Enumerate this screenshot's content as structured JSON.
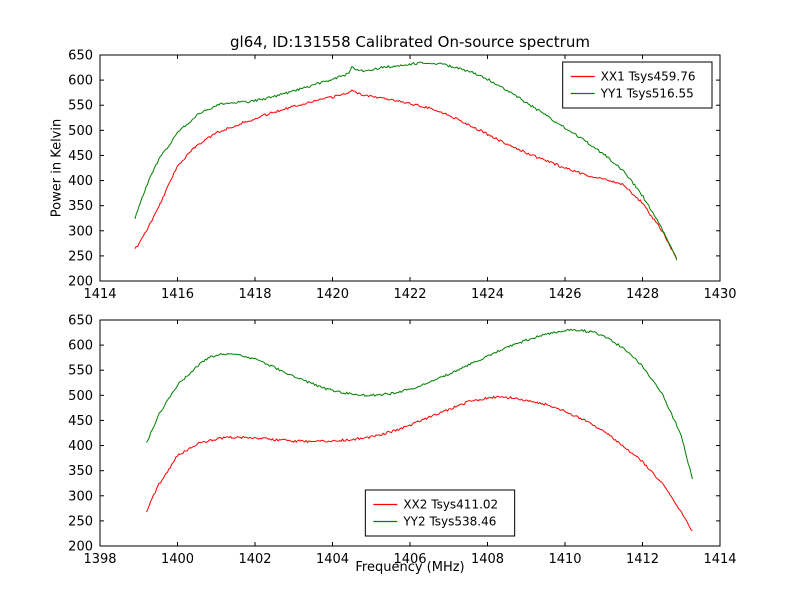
{
  "title": "gl64, ID:131558 Calibrated On-source spectrum",
  "xlabel": "Frequency (MHz)",
  "ylabel": "Power in Kelvin",
  "colors": {
    "red": "#ff0000",
    "green": "#008000",
    "axes": "#000000"
  },
  "chart_data": [
    {
      "type": "line",
      "xlim": [
        1414,
        1430
      ],
      "ylim": [
        200,
        650
      ],
      "xticks": [
        1414,
        1416,
        1418,
        1420,
        1422,
        1424,
        1426,
        1428,
        1430
      ],
      "yticks": [
        200,
        250,
        300,
        350,
        400,
        450,
        500,
        550,
        600,
        650
      ],
      "grid": false,
      "legend_position": "upper-right",
      "series": [
        {
          "name": "XX1 Tsys459.76",
          "color": "#ff0000",
          "x": [
            1414.9,
            1415.2,
            1415.5,
            1416.0,
            1416.5,
            1417.0,
            1417.5,
            1418.0,
            1418.5,
            1419.0,
            1419.5,
            1420.0,
            1420.4,
            1420.5,
            1420.7,
            1421.0,
            1421.5,
            1422.0,
            1422.5,
            1423.0,
            1423.5,
            1424.0,
            1424.5,
            1425.0,
            1425.5,
            1426.0,
            1426.5,
            1427.0,
            1427.5,
            1428.0,
            1428.5,
            1428.9
          ],
          "y": [
            262,
            300,
            345,
            430,
            470,
            495,
            510,
            523,
            537,
            548,
            558,
            566,
            575,
            580,
            572,
            568,
            562,
            553,
            545,
            530,
            512,
            492,
            472,
            455,
            440,
            425,
            412,
            403,
            392,
            355,
            300,
            242
          ]
        },
        {
          "name": "YY1 Tsys516.55",
          "color": "#008000",
          "x": [
            1414.9,
            1415.2,
            1415.5,
            1416.0,
            1416.5,
            1417.0,
            1417.3,
            1417.8,
            1418.2,
            1418.6,
            1419.0,
            1419.5,
            1420.0,
            1420.4,
            1420.5,
            1420.8,
            1421.2,
            1421.6,
            1422.0,
            1422.4,
            1422.8,
            1423.2,
            1423.6,
            1424.0,
            1424.5,
            1425.0,
            1425.5,
            1426.0,
            1426.5,
            1427.0,
            1427.5,
            1428.0,
            1428.5,
            1428.9
          ],
          "y": [
            325,
            390,
            440,
            495,
            530,
            550,
            555,
            557,
            562,
            570,
            578,
            590,
            602,
            612,
            625,
            618,
            624,
            628,
            632,
            635,
            632,
            625,
            615,
            602,
            580,
            555,
            530,
            505,
            480,
            452,
            420,
            370,
            305,
            240
          ]
        }
      ]
    },
    {
      "type": "line",
      "xlim": [
        1398,
        1414
      ],
      "ylim": [
        200,
        650
      ],
      "xticks": [
        1398,
        1400,
        1402,
        1404,
        1406,
        1408,
        1410,
        1412,
        1414
      ],
      "yticks": [
        200,
        250,
        300,
        350,
        400,
        450,
        500,
        550,
        600,
        650
      ],
      "grid": false,
      "legend_position": "lower-center",
      "series": [
        {
          "name": "XX2 Tsys411.02",
          "color": "#ff0000",
          "x": [
            1399.2,
            1399.5,
            1400.0,
            1400.5,
            1401.0,
            1401.5,
            1402.0,
            1402.5,
            1403.0,
            1403.5,
            1404.0,
            1404.5,
            1405.0,
            1405.5,
            1406.0,
            1406.5,
            1407.0,
            1407.5,
            1408.0,
            1408.3,
            1408.7,
            1409.0,
            1409.5,
            1410.0,
            1410.5,
            1411.0,
            1411.5,
            1412.0,
            1412.5,
            1413.0,
            1413.3
          ],
          "y": [
            270,
            320,
            380,
            403,
            413,
            417,
            415,
            412,
            409,
            408,
            409,
            412,
            417,
            427,
            440,
            457,
            472,
            487,
            495,
            497,
            494,
            490,
            482,
            468,
            450,
            428,
            400,
            368,
            325,
            268,
            228
          ]
        },
        {
          "name": "YY2 Tsys538.46",
          "color": "#008000",
          "x": [
            1399.2,
            1399.5,
            1400.0,
            1400.5,
            1400.8,
            1401.1,
            1401.4,
            1401.8,
            1402.2,
            1402.6,
            1403.0,
            1403.4,
            1403.8,
            1404.2,
            1404.6,
            1405.0,
            1405.4,
            1405.8,
            1406.2,
            1406.6,
            1407.0,
            1407.5,
            1408.0,
            1408.5,
            1409.0,
            1409.5,
            1410.0,
            1410.3,
            1410.7,
            1411.0,
            1411.5,
            1412.0,
            1412.5,
            1413.0,
            1413.3
          ],
          "y": [
            405,
            460,
            520,
            558,
            575,
            582,
            583,
            577,
            566,
            552,
            538,
            525,
            514,
            506,
            501,
            500,
            502,
            508,
            517,
            528,
            542,
            560,
            578,
            595,
            610,
            622,
            629,
            630,
            626,
            618,
            595,
            558,
            505,
            420,
            330
          ]
        }
      ]
    }
  ]
}
